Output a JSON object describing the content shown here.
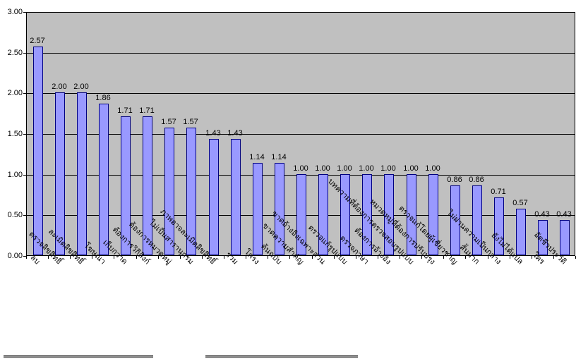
{
  "chart_data": {
    "type": "bar",
    "categories": [
      "ลบ",
      "ตรวจลิขสิทธิ์",
      "ละเมิดลิขสิทธิ์",
      "โฆษณา",
      "เก็บกวาด",
      "ต้องการวิกิลิงก์",
      "ต้องการหมวดหมู่",
      "ไม่เป็นสารานุกรม",
      "ภาพอาจละเมิดลิขสิทธิ์",
      "รวม",
      "โครง",
      "ต้นฉบับ",
      "ขาดความสำคัญ",
      "ขาดอ้างอิงเฉพาะส่วน",
      "ตรวจแก้รูปแบบ",
      "ตรวจภาษา",
      "ต้องการอ้างอิง",
      "บทความที่ต้องการตรวจสอบรูปแบบ",
      "หมวดหมู่ที่ต้องการปรับปรุง",
      "ตรวจแก้โดยผู้เชี่ยวชาญ",
      "สั้นมาก",
      "ไม่ผ่านความเป็นกลาง",
      "ยังไม่ได้แปล",
      "ใคร",
      "อัตชีวประวัติ"
    ],
    "values": [
      2.57,
      2.0,
      2.0,
      1.86,
      1.71,
      1.71,
      1.57,
      1.57,
      1.43,
      1.43,
      1.14,
      1.14,
      1.0,
      1.0,
      1.0,
      1.0,
      1.0,
      1.0,
      1.0,
      0.86,
      0.86,
      0.71,
      0.57,
      0.43,
      0.43
    ],
    "value_labels": [
      "2.57",
      "2.00",
      "2.00",
      "1.86",
      "1.71",
      "1.71",
      "1.57",
      "1.57",
      "1.43",
      "1.43",
      "1.14",
      "1.14",
      "1.00",
      "1.00",
      "1.00",
      "1.00",
      "1.00",
      "1.00",
      "1.00",
      "0.86",
      "0.86",
      "0.71",
      "0.57",
      "0.43",
      "0.43"
    ],
    "ylim": [
      0,
      3
    ],
    "ytick_step": 0.5,
    "ytick_labels": [
      "3.00",
      "2.50",
      "2.00",
      "1.50",
      "1.00",
      "0.50",
      "0.00"
    ],
    "grid": true,
    "legend": "none",
    "xlabel": "",
    "ylabel": "",
    "colors": {
      "bar_fill": "#9999FF",
      "bar_border": "#000080",
      "plot_background": "#C0C0C0",
      "gridline": "#000000",
      "text": "#000000",
      "page_background": "#FFFFFF"
    }
  }
}
